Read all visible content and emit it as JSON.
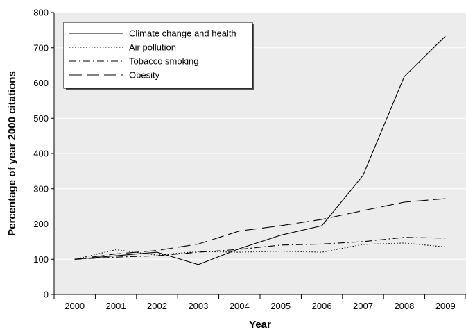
{
  "chart_data": {
    "type": "line",
    "title": "",
    "xlabel": "Year",
    "ylabel": "Percentage of year 2000 citations",
    "x": [
      "2000",
      "2001",
      "2002",
      "2003",
      "2004",
      "2005",
      "2006",
      "2007",
      "2008",
      "2009"
    ],
    "ylim": [
      0,
      800
    ],
    "yticks": [
      "0",
      "100",
      "200",
      "300",
      "400",
      "500",
      "600",
      "700",
      "800"
    ],
    "grid": true,
    "plot_background": "#ececec",
    "legend_position": "top-left",
    "series": [
      {
        "name": "Climate change and health",
        "style": "solid",
        "values": [
          100,
          110,
          120,
          85,
          130,
          168,
          195,
          338,
          618,
          733
        ]
      },
      {
        "name": "Air pollution",
        "style": "dotted",
        "values": [
          100,
          127,
          112,
          122,
          120,
          123,
          120,
          142,
          146,
          135
        ]
      },
      {
        "name": "Tobacco smoking",
        "style": "dashdot",
        "values": [
          100,
          106,
          110,
          120,
          128,
          140,
          143,
          150,
          162,
          160
        ]
      },
      {
        "name": "Obesity",
        "style": "dashed",
        "values": [
          100,
          115,
          125,
          143,
          180,
          195,
          213,
          238,
          262,
          272
        ]
      }
    ]
  }
}
